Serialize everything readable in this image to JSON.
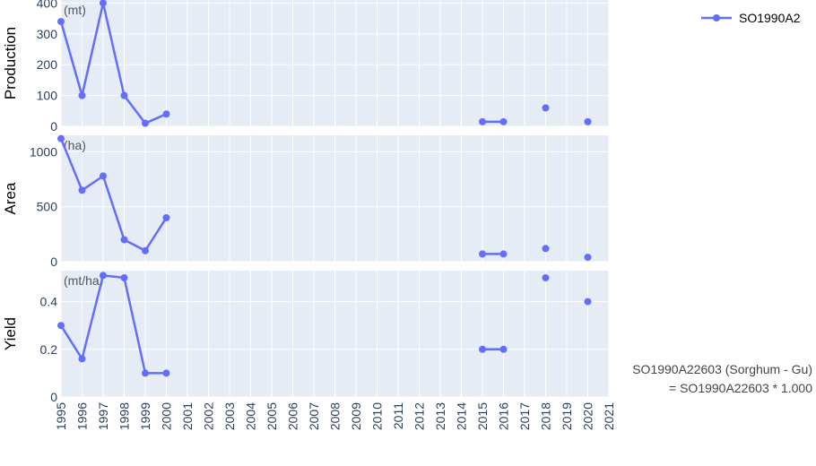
{
  "chart_data": {
    "type": "line",
    "x_ticks": [
      1995,
      1996,
      1997,
      1998,
      1999,
      2000,
      2001,
      2002,
      2003,
      2004,
      2005,
      2006,
      2007,
      2008,
      2009,
      2010,
      2011,
      2012,
      2013,
      2014,
      2015,
      2016,
      2017,
      2018,
      2019,
      2020,
      2021
    ],
    "xlim": [
      1995,
      2021
    ],
    "grid": true,
    "legend_position": "top-right",
    "colors": {
      "series": "#636efa",
      "plot_bg": "#e5ecf6",
      "grid": "#ffffff"
    },
    "series_name": "SO1990A2",
    "panels": [
      {
        "ylabel": "Production",
        "unit": "(mt)",
        "ylim": [
          0,
          410
        ],
        "yticks": [
          0,
          100,
          200,
          300,
          400
        ],
        "x": [
          1995,
          1996,
          1997,
          1998,
          1999,
          2000,
          2015,
          2016,
          2018,
          2020
        ],
        "y": [
          340,
          100,
          400,
          100,
          10,
          40,
          15,
          15,
          60,
          15
        ]
      },
      {
        "ylabel": "Area",
        "unit": "(ha)",
        "ylim": [
          0,
          1150
        ],
        "yticks": [
          0,
          500,
          1000
        ],
        "x": [
          1995,
          1996,
          1997,
          1998,
          1999,
          2000,
          2015,
          2016,
          2018,
          2020
        ],
        "y": [
          1120,
          650,
          780,
          200,
          100,
          400,
          70,
          70,
          120,
          40
        ]
      },
      {
        "ylabel": "Yield",
        "unit": "(mt/ha)",
        "ylim": [
          0,
          0.53
        ],
        "yticks": [
          0,
          0.2,
          0.4
        ],
        "x": [
          1995,
          1996,
          1997,
          1998,
          1999,
          2000,
          2015,
          2016,
          2018,
          2020
        ],
        "y": [
          0.3,
          0.16,
          0.51,
          0.5,
          0.1,
          0.1,
          0.2,
          0.2,
          0.5,
          0.4
        ]
      }
    ]
  },
  "legend": {
    "label": "SO1990A2"
  },
  "note": {
    "line1": "SO1990A22603 (Sorghum - Gu)",
    "line2": "= SO1990A22603 * 1.000"
  }
}
